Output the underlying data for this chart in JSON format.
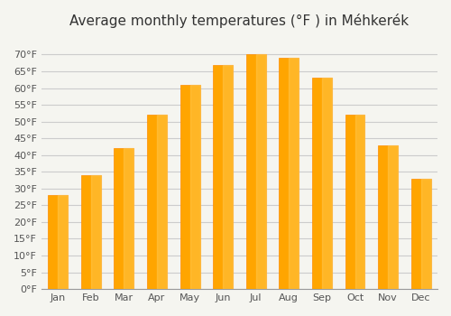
{
  "title": "Average monthly temperatures (°F ) in Méhkerék",
  "months": [
    "Jan",
    "Feb",
    "Mar",
    "Apr",
    "May",
    "Jun",
    "Jul",
    "Aug",
    "Sep",
    "Oct",
    "Nov",
    "Dec"
  ],
  "values": [
    28,
    34,
    42,
    52,
    61,
    67,
    70,
    69,
    63,
    52,
    43,
    33
  ],
  "bar_color": "#FFA500",
  "bar_edge_color": "#FF8C00",
  "background_color": "#f5f5f0",
  "ylim": [
    0,
    75
  ],
  "yticks": [
    0,
    5,
    10,
    15,
    20,
    25,
    30,
    35,
    40,
    45,
    50,
    55,
    60,
    65,
    70
  ],
  "ytick_labels": [
    "0°F",
    "5°F",
    "10°F",
    "15°F",
    "20°F",
    "25°F",
    "30°F",
    "35°F",
    "40°F",
    "45°F",
    "50°F",
    "55°F",
    "60°F",
    "65°F",
    "70°F"
  ],
  "grid_color": "#cccccc",
  "title_fontsize": 11,
  "tick_fontsize": 8
}
